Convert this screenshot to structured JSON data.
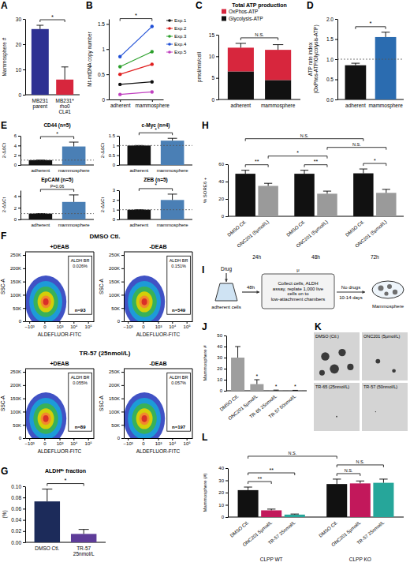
{
  "chart_data": [
    {
      "panel": "A",
      "type": "bar",
      "y_label": "Mammosphere #",
      "categories": [
        "MB231 parent",
        "MB231* rho0 CL#1"
      ],
      "values": [
        26,
        6
      ],
      "errors": [
        1.5,
        5
      ],
      "colors": [
        "#2e3192",
        "#d7263d"
      ],
      "ylim": [
        0,
        30
      ],
      "yticks": [
        0,
        10,
        20,
        30
      ],
      "annotations": [
        {
          "text": "*",
          "between": [
            0,
            1
          ]
        }
      ]
    },
    {
      "panel": "B",
      "type": "line",
      "y_label": "Mt-mtDNA copy number",
      "categories": [
        "adherent",
        "mammosphere"
      ],
      "series": [
        {
          "name": "Exp.1",
          "color": "#111111",
          "values": [
            0.3,
            0.35
          ]
        },
        {
          "name": "Exp.2",
          "color": "#e02020",
          "values": [
            0.5,
            0.7
          ]
        },
        {
          "name": "Exp.3",
          "color": "#2ca02c",
          "values": [
            0.65,
            0.95
          ]
        },
        {
          "name": "Exp.4",
          "color": "#1f4fd6",
          "values": [
            0.85,
            1.45
          ]
        },
        {
          "name": "Exp.5",
          "color": "#c040c0",
          "values": [
            0.1,
            0.15
          ]
        }
      ],
      "marker": "circle",
      "legend": "right",
      "ylim": [
        0,
        1.6
      ],
      "yticks": [
        0,
        0.5,
        1,
        1.5
      ],
      "annotations": [
        {
          "text": "*",
          "between": [
            0,
            1
          ]
        }
      ]
    },
    {
      "panel": "C",
      "type": "bar",
      "stacked": true,
      "title": "Total ATP production",
      "y_label": "pmol/min/cell",
      "categories": [
        "adherent",
        "mammosphere"
      ],
      "series": [
        {
          "name": "Glycolysis-ATP",
          "color": "#111111",
          "values": [
            6.5,
            4.5
          ]
        },
        {
          "name": "OxPhos-ATP",
          "color": "#d7263d",
          "values": [
            5.5,
            7
          ],
          "errors": [
            1,
            1.2
          ]
        }
      ],
      "legend": "top",
      "ylim": [
        0,
        15
      ],
      "yticks": [
        0,
        5,
        10,
        15
      ],
      "annotations": [
        {
          "text": "N.S.",
          "between": [
            0,
            1
          ]
        }
      ]
    },
    {
      "panel": "D",
      "type": "bar",
      "y_label": "ATP rate index (OxPhos-ATP/Glycolysis-ATP)",
      "categories": [
        "adherent",
        "mammosphere"
      ],
      "values": [
        0.85,
        1.55
      ],
      "errors": [
        0.05,
        0.12
      ],
      "colors": [
        "#111111",
        "#2b6cb0"
      ],
      "reference_line": 1,
      "ylim": [
        0,
        2
      ],
      "yticks": [
        {
          "value": 0,
          "label": "0.0"
        },
        {
          "value": 0.5,
          "label": "0.5"
        },
        {
          "value": 1,
          "label": "1.0"
        },
        {
          "value": 1.5,
          "label": "1.5"
        },
        {
          "value": 2,
          "label": "2.0"
        }
      ],
      "annotations": [
        {
          "text": "*",
          "between": [
            0,
            1
          ]
        }
      ]
    },
    {
      "panel": "E",
      "type": "bar",
      "title": "CD44 (n=5)",
      "y_label": "2-ΔΔCt",
      "categories": [
        "adherent",
        "mammosphere"
      ],
      "values": [
        1,
        3.8
      ],
      "errors": [
        0,
        0.9
      ],
      "colors": [
        "#111111",
        "#4a7fb5"
      ],
      "reference_line": 1,
      "ylim": [
        0,
        6
      ],
      "yticks": [
        0,
        2,
        4,
        6
      ],
      "annotations": [
        {
          "text": "*",
          "between": [
            0,
            1
          ]
        }
      ]
    },
    {
      "type": "bar",
      "title": "c-Myc (n=4)",
      "y_label": "2-ΔΔCt",
      "categories": [
        "adherent",
        "mammosphere"
      ],
      "values": [
        1,
        1.25
      ],
      "errors": [
        0,
        0.12
      ],
      "colors": [
        "#111111",
        "#4a7fb5"
      ],
      "reference_line": 1,
      "ylim": [
        0,
        1.5
      ],
      "yticks": [
        0,
        0.5,
        1,
        1.5
      ],
      "annotations": [
        {
          "text": "*",
          "between": [
            0,
            1
          ]
        }
      ]
    },
    {
      "type": "bar",
      "title": "EpCAM (n=5)",
      "y_label": "2-ΔΔCt",
      "categories": [
        "adherent",
        "mammosphere"
      ],
      "values": [
        1,
        3
      ],
      "errors": [
        0,
        1.2
      ],
      "colors": [
        "#111111",
        "#4a7fb5"
      ],
      "reference_line": 1,
      "ylim": [
        0,
        5
      ],
      "yticks": [
        0,
        2,
        4
      ],
      "annotations": [
        {
          "text": "P=0.06",
          "between": [
            0,
            1
          ]
        }
      ]
    },
    {
      "type": "bar",
      "title": "ZEB (n=5)",
      "y_label": "2-ΔΔCt",
      "categories": [
        "adherent",
        "mammosphere"
      ],
      "values": [
        1,
        2
      ],
      "errors": [
        0,
        0.6
      ],
      "colors": [
        "#111111",
        "#4a7fb5"
      ],
      "reference_line": 1,
      "ylim": [
        0,
        3
      ],
      "yticks": [
        0,
        1,
        2,
        3
      ],
      "annotations": [
        {
          "text": "*",
          "between": [
            0,
            1
          ]
        }
      ]
    },
    {
      "panel": "F",
      "type": "flow_cytometry",
      "log": "x",
      "x_label": "ALDEFLUOR-FITC",
      "y_label": "SSC-A",
      "xlim": [
        -2000,
        250000
      ],
      "ylim": [
        0,
        262144
      ],
      "xticks": [
        {
          "value": -1000,
          "label": "−10³"
        },
        0,
        {
          "value": 1000,
          "label": "10³"
        },
        {
          "value": 10000,
          "label": "10⁴"
        },
        {
          "value": 100000,
          "label": "10⁵"
        }
      ],
      "yticks": [
        0,
        {
          "value": 50000,
          "label": "50K"
        },
        {
          "value": 100000,
          "label": "100K"
        },
        {
          "value": 150000,
          "label": "150K"
        },
        {
          "value": 200000,
          "label": "200K"
        },
        {
          "value": 250000,
          "label": "250K"
        }
      ],
      "groups": [
        {
          "title": "DMSO Ctl.",
          "plots": [
            {
              "subtitle": "+DEAB",
              "gate_label": "ALDH BR",
              "gate_percent": "0.026%",
              "n": "n=93"
            },
            {
              "subtitle": "-DEAB",
              "gate_label": "ALDH BR",
              "gate_percent": "0.151%",
              "n": "n=549"
            }
          ]
        },
        {
          "title": "TR-57 (25nmol/L)",
          "plots": [
            {
              "subtitle": "+DEAB",
              "gate_label": "ALDH BR",
              "gate_percent": "0.055%",
              "n": "n=89"
            },
            {
              "subtitle": "-DEAB",
              "gate_label": "ALDH BR",
              "gate_percent": "0.057%",
              "n": "n=197"
            }
          ]
        }
      ]
    },
    {
      "panel": "G",
      "type": "bar",
      "title": "ALDHᴮʳ fraction",
      "y_label": "(%)",
      "categories": [
        "DMSO Ctl.",
        "TR-57 25nmol/L"
      ],
      "values": [
        0.073,
        0.015
      ],
      "errors": [
        0.022,
        0.008
      ],
      "colors": [
        "#1c2b5a",
        "#5e3c99"
      ],
      "ylim": [
        0,
        0.1
      ],
      "yticks": [
        {
          "value": 0,
          "label": "0.00"
        },
        {
          "value": 0.02,
          "label": "0.02"
        },
        {
          "value": 0.04,
          "label": "0.04"
        },
        {
          "value": 0.06,
          "label": "0.06"
        },
        {
          "value": 0.08,
          "label": "0.08"
        },
        {
          "value": 0.1,
          "label": "0.10"
        }
      ],
      "annotations": [
        {
          "text": "*",
          "between": [
            0,
            1
          ]
        }
      ]
    },
    {
      "panel": "H",
      "type": "bar",
      "y_label": "% SORE6 +",
      "categories": [
        "24h",
        "48h",
        "72h"
      ],
      "series": [
        {
          "name": "DMSO Ctl.",
          "color": "#111111",
          "values": [
            49,
            49,
            49.5
          ],
          "errors": [
            4,
            4,
            5
          ]
        },
        {
          "name": "ONC201 (5µmol/L)",
          "color": "#9a9a9a",
          "values": [
            35,
            26,
            27
          ],
          "errors": [
            3,
            3,
            4
          ]
        }
      ],
      "ylim": [
        0,
        60
      ],
      "yticks": [
        0,
        20,
        40,
        60
      ],
      "annotations": [
        {
          "text": "**",
          "between": [
            0,
            1
          ]
        },
        {
          "text": "**",
          "between": [
            2,
            3
          ]
        },
        {
          "text": "*",
          "between": [
            4,
            5
          ]
        },
        {
          "text": "*",
          "between": [
            1,
            3
          ]
        },
        {
          "text": "N.S.",
          "between": [
            3,
            5
          ]
        },
        {
          "text": "N.S.",
          "between": [
            0,
            4
          ]
        }
      ]
    },
    {
      "panel": "J",
      "type": "bar",
      "y_label": "Mammosphere #",
      "categories": [
        "DMSO Ctl.",
        "ONC201 5µmol/L",
        "TR-65 25nmol/L",
        "TR-57 50nmol/L"
      ],
      "values": [
        30,
        6,
        0.3,
        0.2
      ],
      "errors": [
        10,
        4,
        0.3,
        0.2
      ],
      "colors": [
        "#9e9e9e",
        "#9e9e9e",
        "#9e9e9e",
        "#9e9e9e"
      ],
      "ylim": [
        0,
        50
      ],
      "yticks": [
        0,
        10,
        20,
        30,
        40,
        50
      ],
      "annotations": [
        {
          "text": "*",
          "at": 1
        },
        {
          "text": "*",
          "at": 2
        },
        {
          "text": "*",
          "at": 3
        }
      ]
    },
    {
      "panel": "L",
      "type": "bar",
      "y_label": "Mammosphere (#)",
      "categories": [
        "CLPP WT",
        "CLPP KO"
      ],
      "series": [
        {
          "name": "DMSO Ctl.",
          "color": "#111111",
          "values": [
            22,
            27
          ],
          "errors": [
            2.5,
            4
          ]
        },
        {
          "name": "ONC201 5µmol/L",
          "color": "#c2185b",
          "values": [
            5.5,
            27.5
          ],
          "errors": [
            1,
            2
          ]
        },
        {
          "name": "TR-57 25nmol/L",
          "color": "#26a69a",
          "values": [
            2,
            28
          ],
          "errors": [
            0.5,
            3
          ]
        }
      ],
      "ylim": [
        0,
        40
      ],
      "yticks": [
        0,
        10,
        20,
        30,
        40
      ],
      "annotations": [
        {
          "text": "**",
          "between": [
            0,
            1
          ]
        },
        {
          "text": "**",
          "between": [
            0,
            2
          ]
        },
        {
          "text": "N.S.",
          "between": [
            0,
            3
          ]
        },
        {
          "text": "N.S.",
          "between": [
            3,
            4
          ]
        },
        {
          "text": "N.S.",
          "between": [
            3,
            5
          ]
        }
      ]
    }
  ],
  "diagram": {
    "panel": "I",
    "symbol": "μ",
    "drug_label": "Drug",
    "start_label": "adherent cells",
    "step1_label": "48h",
    "box_text": "Collect cells, ALDH assay, replate 1,000 live cells on to low-attachment chambers",
    "step2_top": "No drugs",
    "step2_bottom": "10-14 days",
    "end_label": "Mammosphere"
  },
  "images": {
    "panel": "K",
    "tiles": [
      "DMSO (Ctl.)",
      "ONC201 (5µmol/L)",
      "TR-65 (25nmol/L)",
      "TR-57 (50nmol/L)"
    ]
  }
}
